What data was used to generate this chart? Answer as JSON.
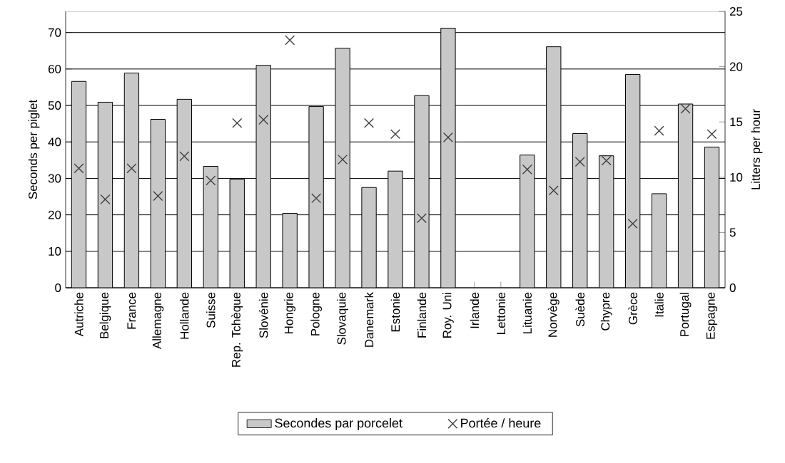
{
  "chart_data": {
    "type": "bar",
    "ylabel": "Seconds per piglet",
    "y2label": "Litters per hour",
    "categories": [
      "Autriche",
      "Belgique",
      "France",
      "Allemagne",
      "Hollande",
      "Suisse",
      "Rep. Tchèque",
      "Slovénie",
      "Hongrie",
      "Pologne",
      "Slovaquie",
      "Danemark",
      "Estonie",
      "Finlande",
      "Roy. Uni",
      "Irlande",
      "Lettonie",
      "Lituanie",
      "Norvège",
      "Suède",
      "Chypre",
      "Grèce",
      "Italie",
      "Portugal",
      "Espagne"
    ],
    "series": [
      {
        "name": "Secondes par porcelet",
        "color": "#c8c8c8",
        "values": [
          56.6,
          50.9,
          58.9,
          46.2,
          51.7,
          33.3,
          29.8,
          61.0,
          20.4,
          49.7,
          65.7,
          27.5,
          32,
          52.7,
          71.2,
          null,
          null,
          36.4,
          66.1,
          42.3,
          36.2,
          58.5,
          25.8,
          50.4,
          38.6
        ]
      },
      {
        "name": "Portée / heure",
        "type": "scatter",
        "axis": "y2",
        "color": "#404040",
        "values": [
          10.8,
          8.0,
          10.8,
          8.3,
          11.9,
          9.7,
          14.9,
          15.2,
          22.4,
          8.1,
          11.6,
          14.9,
          13.9,
          6.3,
          13.6,
          null,
          null,
          10.7,
          8.8,
          11.4,
          11.5,
          5.8,
          14.2,
          16.2,
          13.9
        ]
      }
    ],
    "ylim": [
      0,
      75.8
    ],
    "yticks": [
      0,
      10,
      20,
      30,
      40,
      50,
      60,
      70
    ],
    "y2lim": [
      0,
      25
    ],
    "y2ticks": [
      0,
      5,
      10,
      15,
      20,
      25
    ],
    "grid": "y",
    "legend": "bottom",
    "marker": "cross"
  }
}
